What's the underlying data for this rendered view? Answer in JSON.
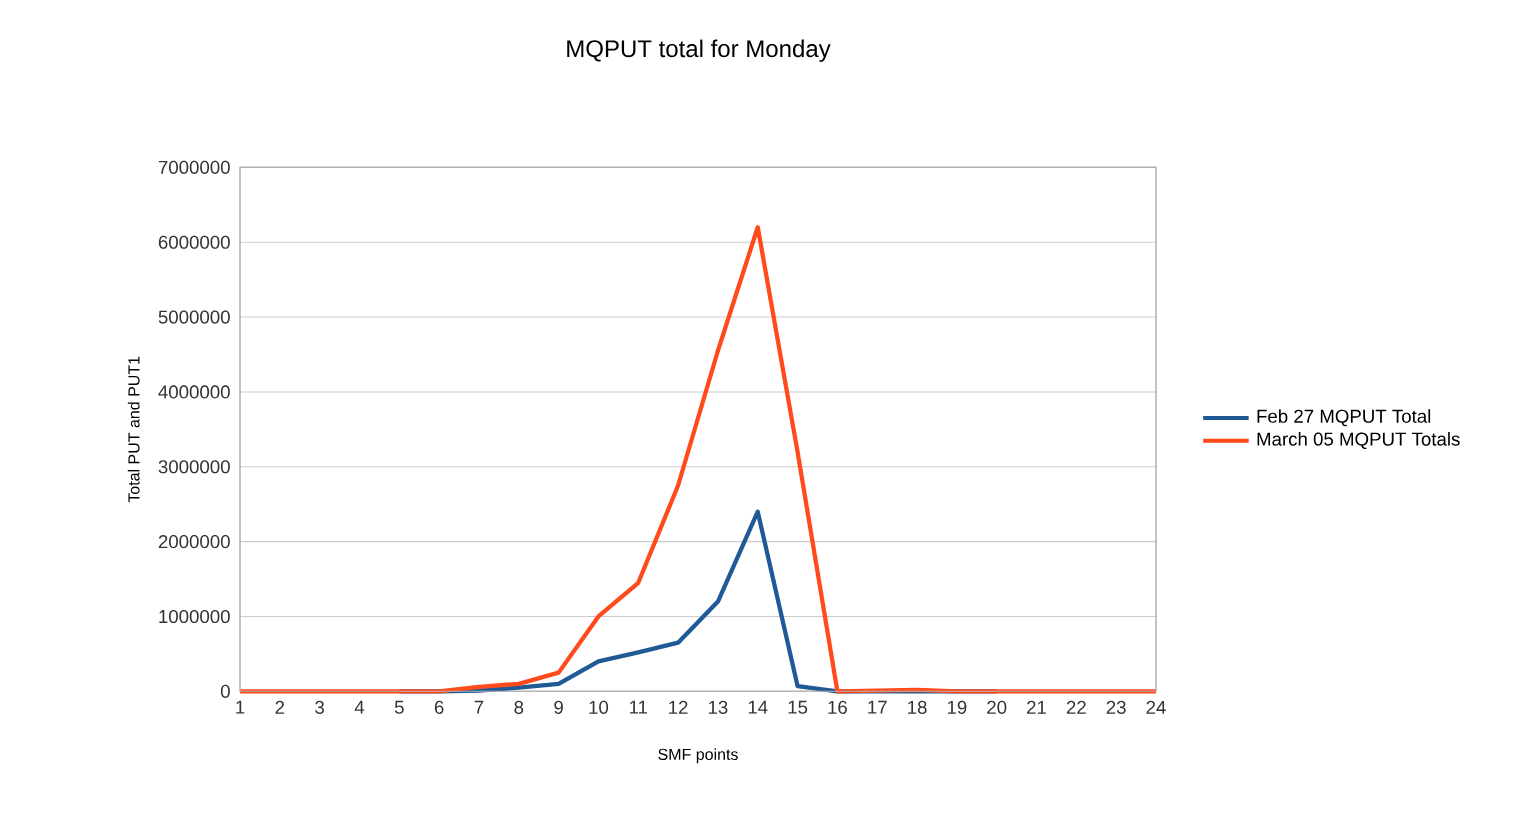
{
  "chart_data": {
    "type": "line",
    "title": "MQPUT total for Monday",
    "xlabel": "SMF points",
    "ylabel": "Total PUT and PUT1",
    "categories": [
      "1",
      "2",
      "3",
      "4",
      "5",
      "6",
      "7",
      "8",
      "9",
      "10",
      "11",
      "12",
      "13",
      "14",
      "15",
      "16",
      "17",
      "18",
      "19",
      "20",
      "21",
      "22",
      "23",
      "24"
    ],
    "series": [
      {
        "name": "Feb 27 MQPUT Total",
        "color": "#1f5a96",
        "values": [
          null,
          null,
          null,
          null,
          0,
          0,
          10000,
          50000,
          100000,
          400000,
          520000,
          650000,
          1200000,
          2400000,
          70000,
          0,
          0,
          0,
          0,
          0,
          null,
          null,
          null,
          null
        ]
      },
      {
        "name": "March 05 MQPUT Totals",
        "color": "#ff4a1c",
        "values": [
          0,
          0,
          0,
          0,
          0,
          0,
          60000,
          100000,
          250000,
          1000000,
          1450000,
          2750000,
          4550000,
          6200000,
          3200000,
          0,
          10000,
          20000,
          0,
          0,
          0,
          0,
          0,
          0
        ]
      }
    ],
    "ylim": [
      0,
      7000000
    ],
    "yticks": [
      0,
      1000000,
      2000000,
      3000000,
      4000000,
      5000000,
      6000000,
      7000000
    ],
    "grid": "y",
    "legend": "right"
  }
}
